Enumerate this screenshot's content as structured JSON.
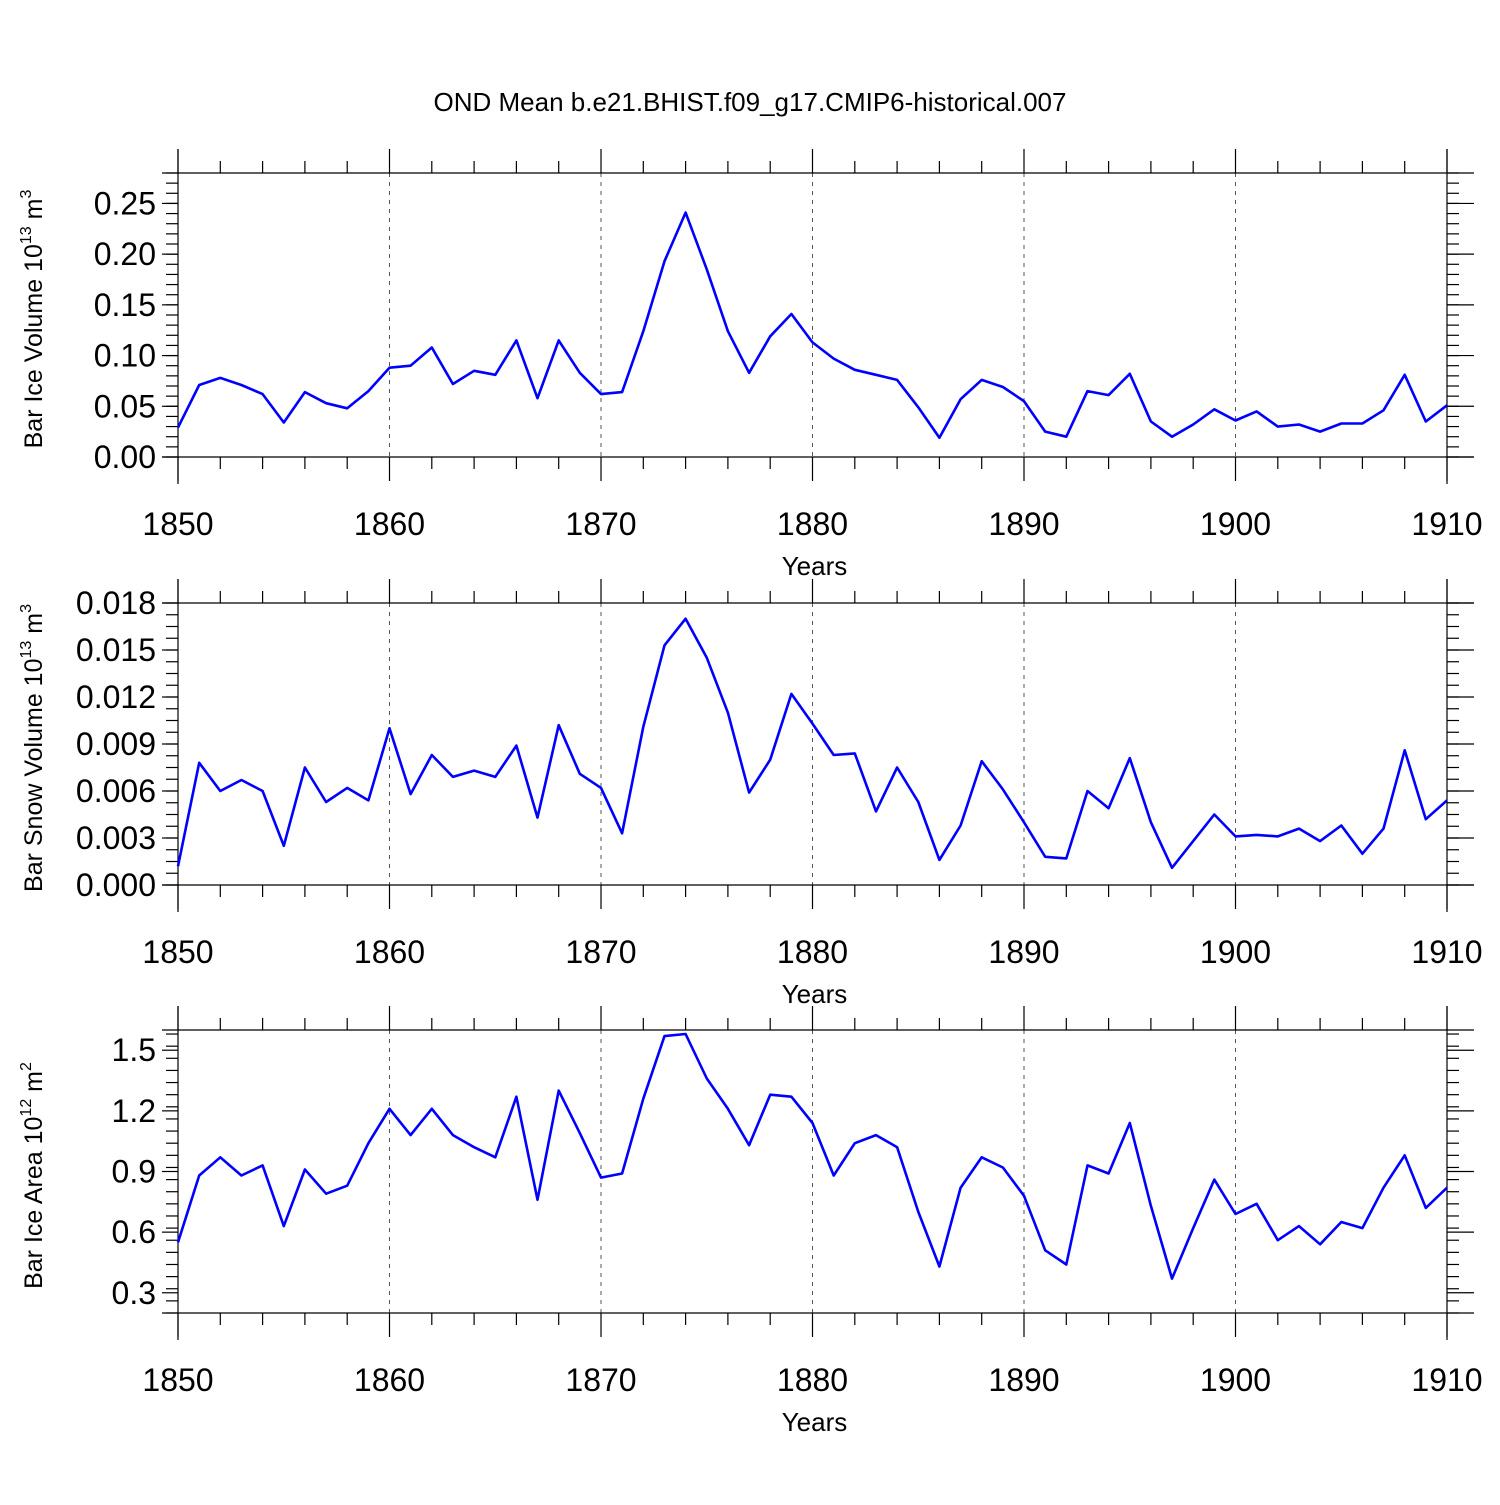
{
  "title": "OND Mean b.e21.BHIST.f09_g17.CMIP6-historical.007",
  "chart_data": [
    {
      "type": "line",
      "ylabel": {
        "main": "Bar Ice Volume 10",
        "sup": "13",
        "unit": " m",
        "unit_sup": "3"
      },
      "xlabel": "Years",
      "xlim": [
        1850,
        1910
      ],
      "ylim": [
        0,
        0.28
      ],
      "yticks": [
        0.0,
        0.05,
        0.1,
        0.15,
        0.2,
        0.25
      ],
      "ytick_labels": [
        "0.00",
        "0.05",
        "0.10",
        "0.15",
        "0.20",
        "0.25"
      ],
      "yminor_step": 0.01,
      "xticks": [
        1850,
        1860,
        1870,
        1880,
        1890,
        1900,
        1910
      ],
      "xtick_labels": [
        "1850",
        "1860",
        "1870",
        "1880",
        "1890",
        "1900",
        "1910"
      ],
      "grid": "vertical dashed at major x ticks",
      "series": [
        {
          "name": "Bar Ice Volume",
          "color": "#0000ff",
          "x": [
            1850,
            1851,
            1852,
            1853,
            1854,
            1855,
            1856,
            1857,
            1858,
            1859,
            1860,
            1861,
            1862,
            1863,
            1864,
            1865,
            1866,
            1867,
            1868,
            1869,
            1870,
            1871,
            1872,
            1873,
            1874,
            1875,
            1876,
            1877,
            1878,
            1879,
            1880,
            1881,
            1882,
            1883,
            1884,
            1885,
            1886,
            1887,
            1888,
            1889,
            1890,
            1891,
            1892,
            1893,
            1894,
            1895,
            1896,
            1897,
            1898,
            1899,
            1900,
            1901,
            1902,
            1903,
            1904,
            1905,
            1906,
            1907,
            1908,
            1909,
            1910
          ],
          "values": [
            0.029,
            0.071,
            0.078,
            0.071,
            0.062,
            0.034,
            0.064,
            0.053,
            0.048,
            0.065,
            0.088,
            0.09,
            0.108,
            0.072,
            0.085,
            0.081,
            0.115,
            0.058,
            0.115,
            0.083,
            0.062,
            0.064,
            0.124,
            0.193,
            0.241,
            0.185,
            0.124,
            0.083,
            0.119,
            0.141,
            0.113,
            0.097,
            0.086,
            0.081,
            0.076,
            0.049,
            0.019,
            0.057,
            0.076,
            0.069,
            0.055,
            0.025,
            0.02,
            0.065,
            0.061,
            0.082,
            0.035,
            0.02,
            0.032,
            0.047,
            0.036,
            0.045,
            0.03,
            0.032,
            0.025,
            0.033,
            0.033,
            0.046,
            0.081,
            0.035,
            0.051
          ]
        }
      ]
    },
    {
      "type": "line",
      "ylabel": {
        "main": "Bar Snow Volume 10",
        "sup": "13",
        "unit": " m",
        "unit_sup": "3"
      },
      "xlabel": "Years",
      "xlim": [
        1850,
        1910
      ],
      "ylim": [
        0,
        0.018
      ],
      "yticks": [
        0.0,
        0.003,
        0.006,
        0.009,
        0.012,
        0.015,
        0.018
      ],
      "ytick_labels": [
        "0.000",
        "0.003",
        "0.006",
        "0.009",
        "0.012",
        "0.015",
        "0.018"
      ],
      "yminor_step": 0.00075,
      "xticks": [
        1850,
        1860,
        1870,
        1880,
        1890,
        1900,
        1910
      ],
      "xtick_labels": [
        "1850",
        "1860",
        "1870",
        "1880",
        "1890",
        "1900",
        "1910"
      ],
      "grid": "vertical dashed at major x ticks",
      "series": [
        {
          "name": "Bar Snow Volume",
          "color": "#0000ff",
          "x": [
            1850,
            1851,
            1852,
            1853,
            1854,
            1855,
            1856,
            1857,
            1858,
            1859,
            1860,
            1861,
            1862,
            1863,
            1864,
            1865,
            1866,
            1867,
            1868,
            1869,
            1870,
            1871,
            1872,
            1873,
            1874,
            1875,
            1876,
            1877,
            1878,
            1879,
            1880,
            1881,
            1882,
            1883,
            1884,
            1885,
            1886,
            1887,
            1888,
            1889,
            1890,
            1891,
            1892,
            1893,
            1894,
            1895,
            1896,
            1897,
            1898,
            1899,
            1900,
            1901,
            1902,
            1903,
            1904,
            1905,
            1906,
            1907,
            1908,
            1909,
            1910
          ],
          "values": [
            0.0012,
            0.0078,
            0.006,
            0.0067,
            0.006,
            0.0025,
            0.0075,
            0.0053,
            0.0062,
            0.0054,
            0.01,
            0.0058,
            0.0083,
            0.0069,
            0.0073,
            0.0069,
            0.0089,
            0.0043,
            0.0102,
            0.0071,
            0.0062,
            0.0033,
            0.0101,
            0.0153,
            0.017,
            0.0145,
            0.011,
            0.0059,
            0.008,
            0.0122,
            0.0103,
            0.0083,
            0.0084,
            0.0047,
            0.0075,
            0.0053,
            0.0016,
            0.0038,
            0.0079,
            0.0061,
            0.004,
            0.0018,
            0.0017,
            0.006,
            0.0049,
            0.0081,
            0.004,
            0.0011,
            0.0028,
            0.0045,
            0.0031,
            0.0032,
            0.0031,
            0.0036,
            0.0028,
            0.0038,
            0.002,
            0.0036,
            0.0086,
            0.0042,
            0.0054
          ]
        }
      ]
    },
    {
      "type": "line",
      "ylabel": {
        "main": "Bar Ice Area 10",
        "sup": "12",
        "unit": " m",
        "unit_sup": "2"
      },
      "xlabel": "Years",
      "xlim": [
        1850,
        1910
      ],
      "ylim": [
        0.2,
        1.6
      ],
      "yticks": [
        0.3,
        0.6,
        0.9,
        1.2,
        1.5
      ],
      "ytick_labels": [
        "0.3",
        "0.6",
        "0.9",
        "1.2",
        "1.5"
      ],
      "yminor_step": 0.06,
      "xticks": [
        1850,
        1860,
        1870,
        1880,
        1890,
        1900,
        1910
      ],
      "xtick_labels": [
        "1850",
        "1860",
        "1870",
        "1880",
        "1890",
        "1900",
        "1910"
      ],
      "grid": "vertical dashed at major x ticks",
      "series": [
        {
          "name": "Bar Ice Area",
          "color": "#0000ff",
          "x": [
            1850,
            1851,
            1852,
            1853,
            1854,
            1855,
            1856,
            1857,
            1858,
            1859,
            1860,
            1861,
            1862,
            1863,
            1864,
            1865,
            1866,
            1867,
            1868,
            1869,
            1870,
            1871,
            1872,
            1873,
            1874,
            1875,
            1876,
            1877,
            1878,
            1879,
            1880,
            1881,
            1882,
            1883,
            1884,
            1885,
            1886,
            1887,
            1888,
            1889,
            1890,
            1891,
            1892,
            1893,
            1894,
            1895,
            1896,
            1897,
            1898,
            1899,
            1900,
            1901,
            1902,
            1903,
            1904,
            1905,
            1906,
            1907,
            1908,
            1909,
            1910
          ],
          "values": [
            0.55,
            0.88,
            0.97,
            0.88,
            0.93,
            0.63,
            0.91,
            0.79,
            0.83,
            1.04,
            1.21,
            1.08,
            1.21,
            1.08,
            1.02,
            0.97,
            1.27,
            0.76,
            1.3,
            1.09,
            0.87,
            0.89,
            1.26,
            1.57,
            1.58,
            1.36,
            1.21,
            1.03,
            1.28,
            1.27,
            1.14,
            0.88,
            1.04,
            1.08,
            1.02,
            0.7,
            0.43,
            0.82,
            0.97,
            0.92,
            0.78,
            0.51,
            0.44,
            0.93,
            0.89,
            1.14,
            0.73,
            0.37,
            0.62,
            0.86,
            0.69,
            0.74,
            0.56,
            0.63,
            0.54,
            0.65,
            0.62,
            0.82,
            0.98,
            0.72,
            0.82
          ]
        }
      ]
    }
  ]
}
